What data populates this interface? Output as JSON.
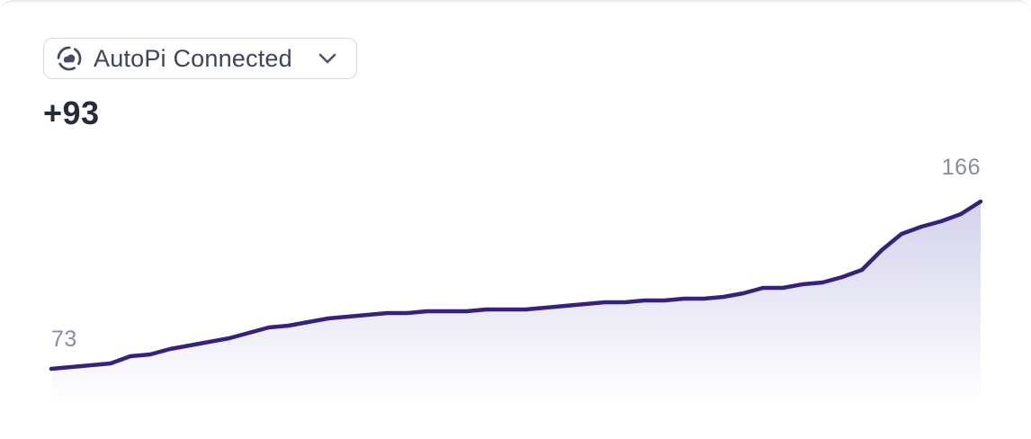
{
  "selector": {
    "label": "AutoPi Connected",
    "icon": "autopi-cloud-circle-icon",
    "icon_color": "#454c5f",
    "chevron_color": "#4c5365",
    "border_color": "#d7d9e2",
    "text_color": "#3e4557"
  },
  "delta": "+93",
  "chart_data": {
    "type": "area",
    "series": [
      {
        "name": "AutoPi Connected",
        "values": [
          73,
          74,
          75,
          76,
          80,
          81,
          84,
          86,
          88,
          90,
          93,
          96,
          97,
          99,
          101,
          102,
          103,
          104,
          104,
          105,
          105,
          105,
          106,
          106,
          106,
          107,
          108,
          109,
          110,
          110,
          111,
          111,
          112,
          112,
          113,
          115,
          118,
          118,
          120,
          121,
          124,
          128,
          139,
          148,
          152,
          155,
          159,
          166
        ]
      }
    ],
    "first_value": 73,
    "last_value": 166,
    "delta": 93,
    "point_labels": {
      "start": "73",
      "end": "166"
    },
    "x_axis": "hidden",
    "y_axis": "hidden",
    "grid": false,
    "legend": "none",
    "line_color": "#38217e",
    "fill_gradient_top": "rgba(88,82,182,0.26)",
    "fill_gradient_bottom": "rgba(88,82,182,0)",
    "label_color": "#878da0"
  },
  "card": {
    "background": "#ffffff",
    "top_border_color": "#e9e9f2",
    "delta_color": "#252b3b"
  }
}
